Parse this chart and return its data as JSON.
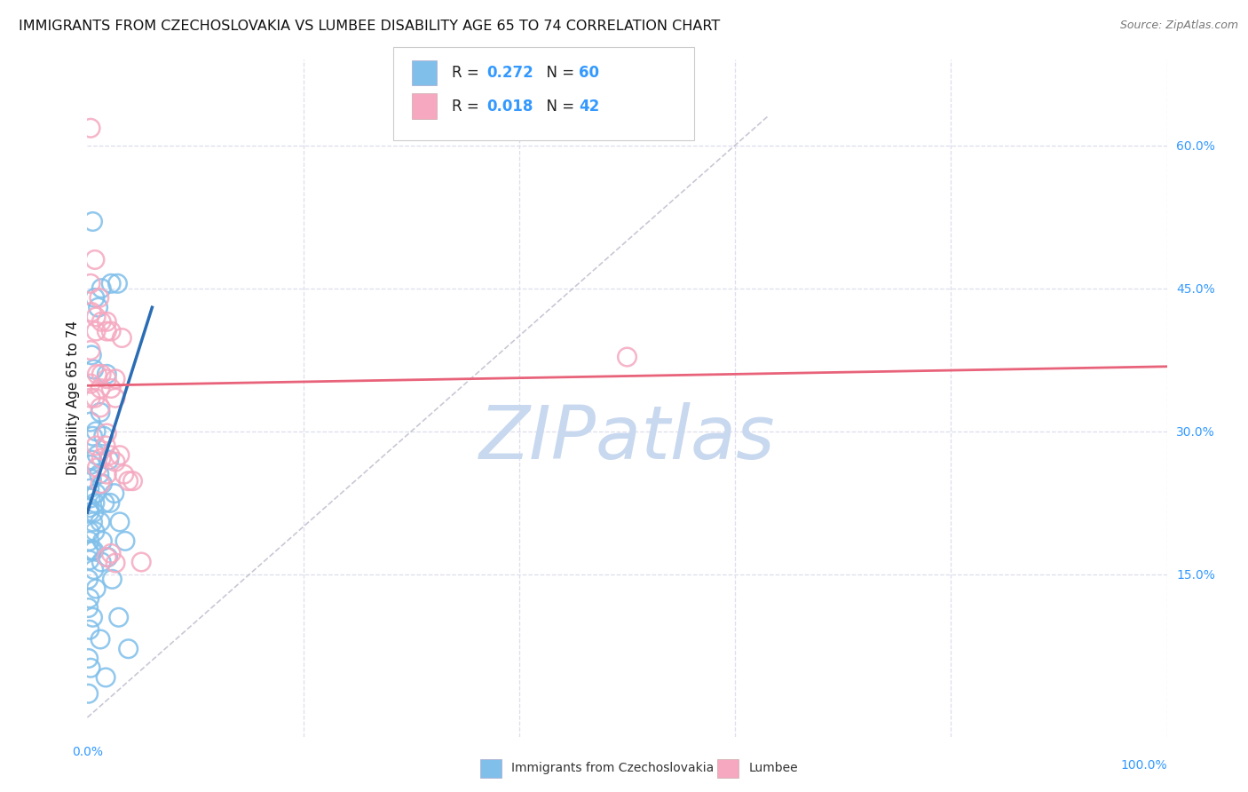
{
  "title": "IMMIGRANTS FROM CZECHOSLOVAKIA VS LUMBEE DISABILITY AGE 65 TO 74 CORRELATION CHART",
  "source": "Source: ZipAtlas.com",
  "ylabel": "Disability Age 65 to 74",
  "ytick_labels": [
    "15.0%",
    "30.0%",
    "45.0%",
    "60.0%"
  ],
  "ytick_values": [
    0.15,
    0.3,
    0.45,
    0.6
  ],
  "color_blue": "#7fbfea",
  "color_pink": "#f5a8c0",
  "color_blue_line": "#2a6db5",
  "color_pink_line": "#e8637a",
  "color_ref_line": "#bbbbcc",
  "blue_scatter_x": [
    0.005,
    0.013,
    0.022,
    0.007,
    0.01,
    0.028,
    0.004,
    0.018,
    0.006,
    0.012,
    0.003,
    0.008,
    0.005,
    0.015,
    0.004,
    0.009,
    0.02,
    0.003,
    0.011,
    0.004,
    0.002,
    0.014,
    0.008,
    0.003,
    0.025,
    0.007,
    0.016,
    0.021,
    0.002,
    0.006,
    0.002,
    0.005,
    0.012,
    0.03,
    0.002,
    0.007,
    0.002,
    0.014,
    0.035,
    0.006,
    0.001,
    0.004,
    0.019,
    0.002,
    0.013,
    0.006,
    0.001,
    0.023,
    0.008,
    0.002,
    0.001,
    0.005,
    0.029,
    0.002,
    0.012,
    0.038,
    0.001,
    0.003,
    0.017,
    0.001
  ],
  "blue_scatter_y": [
    0.52,
    0.45,
    0.455,
    0.44,
    0.43,
    0.455,
    0.38,
    0.36,
    0.365,
    0.32,
    0.31,
    0.3,
    0.295,
    0.295,
    0.27,
    0.275,
    0.27,
    0.265,
    0.255,
    0.25,
    0.24,
    0.245,
    0.235,
    0.23,
    0.235,
    0.225,
    0.225,
    0.225,
    0.22,
    0.215,
    0.215,
    0.205,
    0.205,
    0.205,
    0.195,
    0.195,
    0.185,
    0.185,
    0.185,
    0.175,
    0.175,
    0.175,
    0.168,
    0.165,
    0.163,
    0.155,
    0.145,
    0.145,
    0.135,
    0.125,
    0.115,
    0.105,
    0.105,
    0.092,
    0.082,
    0.072,
    0.062,
    0.052,
    0.042,
    0.025
  ],
  "pink_scatter_x": [
    0.003,
    0.007,
    0.003,
    0.011,
    0.004,
    0.008,
    0.013,
    0.008,
    0.018,
    0.003,
    0.013,
    0.009,
    0.003,
    0.018,
    0.012,
    0.022,
    0.007,
    0.003,
    0.026,
    0.012,
    0.008,
    0.017,
    0.03,
    0.013,
    0.021,
    0.009,
    0.026,
    0.018,
    0.034,
    0.012,
    0.042,
    0.022,
    0.018,
    0.026,
    0.05,
    0.018,
    0.022,
    0.032,
    0.038,
    0.026,
    0.5,
    0.018
  ],
  "pink_scatter_y": [
    0.618,
    0.48,
    0.455,
    0.44,
    0.425,
    0.42,
    0.415,
    0.405,
    0.405,
    0.385,
    0.36,
    0.36,
    0.35,
    0.355,
    0.345,
    0.345,
    0.335,
    0.335,
    0.335,
    0.325,
    0.285,
    0.285,
    0.275,
    0.272,
    0.275,
    0.262,
    0.268,
    0.255,
    0.255,
    0.245,
    0.248,
    0.172,
    0.168,
    0.162,
    0.163,
    0.415,
    0.405,
    0.398,
    0.248,
    0.355,
    0.378,
    0.298
  ],
  "blue_trend_x": [
    0.0,
    0.06
  ],
  "blue_trend_y": [
    0.215,
    0.43
  ],
  "pink_trend_x": [
    0.0,
    1.0
  ],
  "pink_trend_y": [
    0.348,
    0.368
  ],
  "ref_line_x": [
    0.0,
    0.63
  ],
  "ref_line_y": [
    0.0,
    0.63
  ],
  "xlim": [
    0.0,
    1.0
  ],
  "ylim": [
    -0.02,
    0.69
  ],
  "xtick_positions": [
    0.0,
    0.2,
    0.4,
    0.6,
    0.8,
    1.0
  ],
  "background_color": "#ffffff",
  "grid_color": "#ddddee",
  "title_fontsize": 11.5,
  "axis_label_fontsize": 11,
  "tick_fontsize": 10,
  "source_fontsize": 9,
  "watermark_text": "ZIPatlas",
  "watermark_color": "#c8d8ef",
  "watermark_fontsize": 60,
  "legend_R1": "0.272",
  "legend_N1": "60",
  "legend_R2": "0.018",
  "legend_N2": "42",
  "bottom_legend_label1": "Immigrants from Czechoslovakia",
  "bottom_legend_label2": "Lumbee"
}
